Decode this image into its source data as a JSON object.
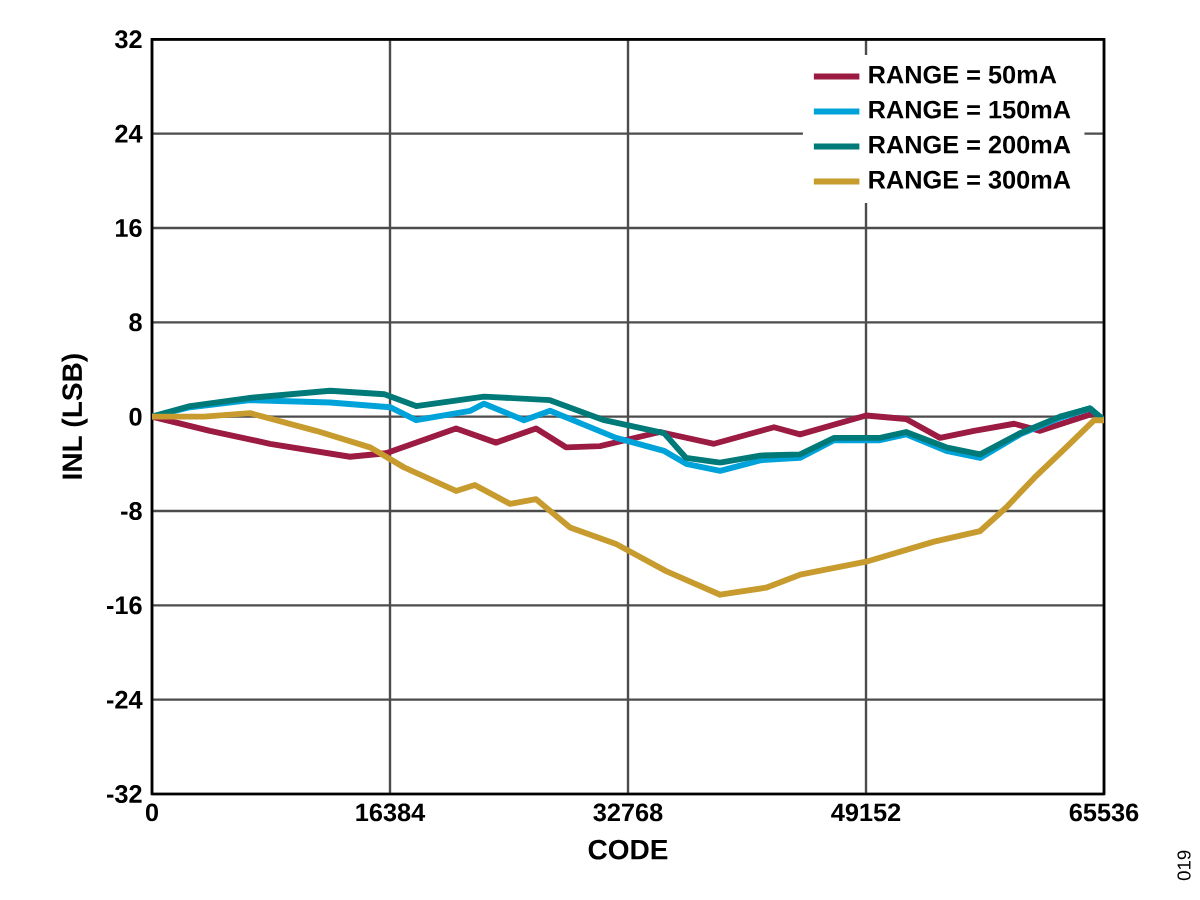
{
  "chart_data": {
    "type": "line",
    "xlabel": "CODE",
    "ylabel": "INL (LSB)",
    "xlim": [
      0,
      65536
    ],
    "xticks": [
      0,
      16384,
      32768,
      49152,
      65536
    ],
    "ylim": [
      -32,
      32
    ],
    "yticks": [
      -32,
      -24,
      -16,
      -8,
      0,
      8,
      16,
      24,
      32
    ],
    "grid": true,
    "legend": "top right",
    "line_style": "solid",
    "marker": "none",
    "annotations": [
      "019"
    ],
    "series": [
      {
        "name": "RANGE = 50mA",
        "color": "#9b1b42",
        "x": [
          0,
          3990,
          8125,
          13630,
          16110,
          20930,
          23680,
          26440,
          28500,
          30840,
          34970,
          38690,
          42820,
          44610,
          49160,
          51910,
          54250,
          56590,
          59350,
          61140,
          64860,
          65536
        ],
        "values": [
          0,
          -1.2,
          -2.3,
          -3.4,
          -3.1,
          -1.0,
          -2.2,
          -1.0,
          -2.6,
          -2.5,
          -1.3,
          -2.3,
          -0.9,
          -1.5,
          0.1,
          -0.2,
          -1.8,
          -1.2,
          -0.6,
          -1.2,
          0.3,
          -0.3
        ]
      },
      {
        "name": "RANGE = 150mA",
        "color": "#00a3d9",
        "x": [
          0,
          2620,
          6750,
          12260,
          16390,
          18180,
          21900,
          22860,
          25610,
          27400,
          31950,
          35250,
          36770,
          39110,
          41860,
          44610,
          46960,
          50120,
          51910,
          54670,
          57010,
          59760,
          62510,
          64580,
          65536
        ],
        "values": [
          0,
          0.8,
          1.4,
          1.2,
          0.8,
          -0.3,
          0.5,
          1.1,
          -0.3,
          0.5,
          -1.8,
          -2.9,
          -4.0,
          -4.6,
          -3.7,
          -3.5,
          -2.0,
          -2.0,
          -1.5,
          -2.9,
          -3.5,
          -1.5,
          -0.1,
          0.7,
          -0.3
        ]
      },
      {
        "name": "RANGE = 200mA",
        "color": "#007a78",
        "x": [
          0,
          2620,
          6750,
          12260,
          16000,
          18180,
          22860,
          27400,
          31130,
          35250,
          36770,
          39110,
          41860,
          44610,
          46960,
          50120,
          51910,
          54670,
          57010,
          59760,
          62510,
          64580,
          65536
        ],
        "values": [
          0,
          0.9,
          1.6,
          2.2,
          1.9,
          0.9,
          1.7,
          1.4,
          -0.3,
          -1.4,
          -3.5,
          -3.9,
          -3.3,
          -3.2,
          -1.8,
          -1.8,
          -1.3,
          -2.6,
          -3.2,
          -1.4,
          0,
          0.7,
          -0.3
        ]
      },
      {
        "name": "RANGE = 300mA",
        "color": "#c89b2e",
        "x": [
          0,
          3580,
          6750,
          11290,
          15010,
          17350,
          20930,
          22230,
          24650,
          26440,
          28780,
          31950,
          35390,
          39110,
          42270,
          44610,
          49160,
          53840,
          57010,
          58800,
          60730,
          62930,
          64860,
          65536
        ],
        "values": [
          0,
          0,
          0.3,
          -1.2,
          -2.6,
          -4.3,
          -6.3,
          -5.8,
          -7.4,
          -7.0,
          -9.4,
          -10.8,
          -13.1,
          -15.1,
          -14.5,
          -13.4,
          -12.3,
          -10.6,
          -9.7,
          -7.7,
          -5.2,
          -2.6,
          -0.3,
          -0.3
        ]
      }
    ]
  }
}
